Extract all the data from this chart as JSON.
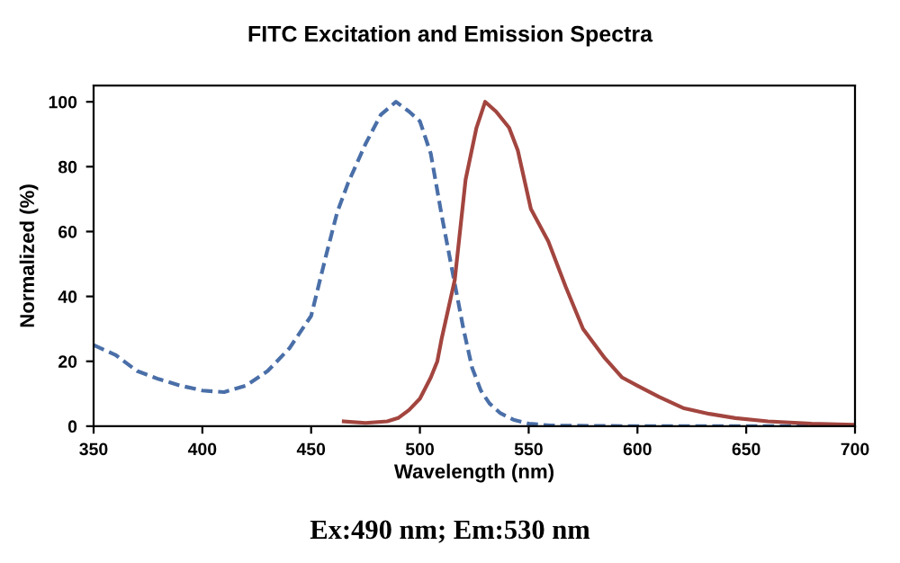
{
  "chart_data": {
    "type": "line",
    "title": "FITC Excitation and Emission Spectra",
    "xlabel": "Wavelength (nm)",
    "ylabel": "Normalized (%)",
    "xlim": [
      350,
      700
    ],
    "xticks": [
      350,
      400,
      450,
      500,
      550,
      600,
      650,
      700
    ],
    "ylim": [
      0,
      105
    ],
    "yticks": [
      0,
      20,
      40,
      60,
      80,
      100
    ],
    "grid": false,
    "legend": false,
    "marker": "none",
    "annotations": [
      "Ex:490 nm; Em:530 nm"
    ],
    "series": [
      {
        "color": "#4a6fa8",
        "line_style": "dashed",
        "x": [
          350,
          360,
          370,
          380,
          390,
          400,
          410,
          420,
          430,
          440,
          450,
          457,
          462,
          467,
          475,
          482,
          489,
          495,
          500,
          505,
          510,
          516,
          520,
          524,
          528,
          532,
          537,
          543,
          550,
          560,
          600,
          650,
          700
        ],
        "values": [
          25,
          22,
          17,
          14.5,
          12.5,
          11,
          10.5,
          12.5,
          17,
          24,
          34,
          53,
          66,
          75,
          87,
          96,
          100,
          97,
          94,
          84,
          65,
          44,
          30,
          18,
          11,
          7,
          4,
          2,
          0.8,
          0.2,
          0,
          0,
          0
        ]
      },
      {
        "color": "#a3453f",
        "line_style": "solid",
        "x": [
          465,
          475,
          485,
          490,
          495,
          500,
          505,
          508,
          510,
          516,
          521,
          526,
          530,
          535,
          541,
          545,
          551,
          559,
          567,
          575,
          585,
          593,
          600,
          610,
          621,
          633,
          645,
          660,
          680,
          700
        ],
        "values": [
          1.5,
          1,
          1.5,
          2.5,
          5,
          8.5,
          15,
          20,
          27,
          45,
          76,
          92,
          100,
          97,
          92,
          85,
          67,
          57,
          43,
          30,
          21,
          15,
          12.5,
          9,
          5.6,
          3.8,
          2.5,
          1.5,
          0.8,
          0.4
        ]
      }
    ]
  }
}
